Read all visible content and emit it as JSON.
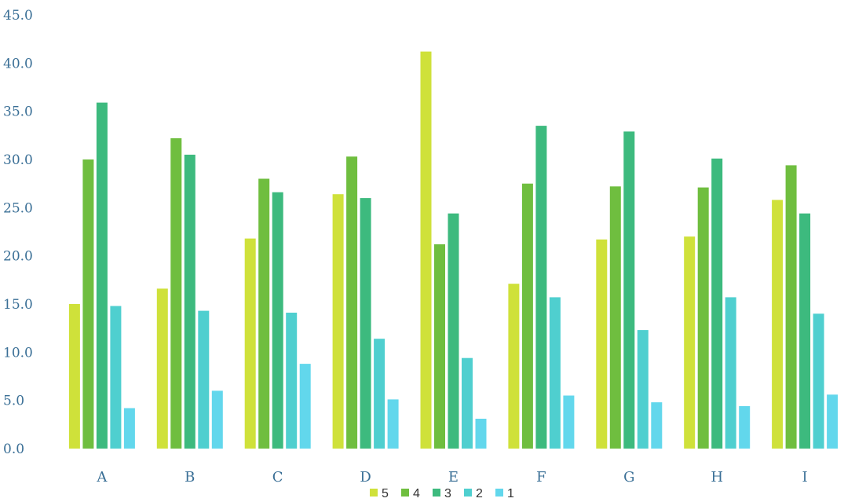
{
  "chart_data": {
    "type": "bar",
    "title": "",
    "xlabel": "",
    "ylabel": "",
    "categories": [
      "A",
      "B",
      "C",
      "D",
      "E",
      "F",
      "G",
      "H",
      "I"
    ],
    "ylim": [
      0,
      45
    ],
    "yticks": [
      "0.0",
      "5.0",
      "10.0",
      "15.0",
      "20.0",
      "25.0",
      "30.0",
      "35.0",
      "40.0",
      "45.0"
    ],
    "grid": false,
    "legend_position": "bottom",
    "series": [
      {
        "name": "5",
        "color": "#cfe13a",
        "values": [
          15.0,
          16.6,
          21.8,
          26.4,
          41.2,
          17.1,
          21.7,
          22.0,
          25.8
        ]
      },
      {
        "name": "4",
        "color": "#6fbe3f",
        "values": [
          30.0,
          32.2,
          28.0,
          30.3,
          21.2,
          27.5,
          27.2,
          27.1,
          29.4
        ]
      },
      {
        "name": "3",
        "color": "#3dba7e",
        "values": [
          35.9,
          30.5,
          26.6,
          26.0,
          24.4,
          33.5,
          32.9,
          30.1,
          24.4
        ]
      },
      {
        "name": "2",
        "color": "#4fcfcf",
        "values": [
          14.8,
          14.3,
          14.1,
          11.4,
          9.4,
          15.7,
          12.3,
          15.7,
          14.0
        ]
      },
      {
        "name": "1",
        "color": "#62d7ec",
        "values": [
          4.2,
          6.0,
          8.8,
          5.1,
          3.1,
          5.5,
          4.8,
          4.4,
          5.6
        ]
      }
    ]
  }
}
